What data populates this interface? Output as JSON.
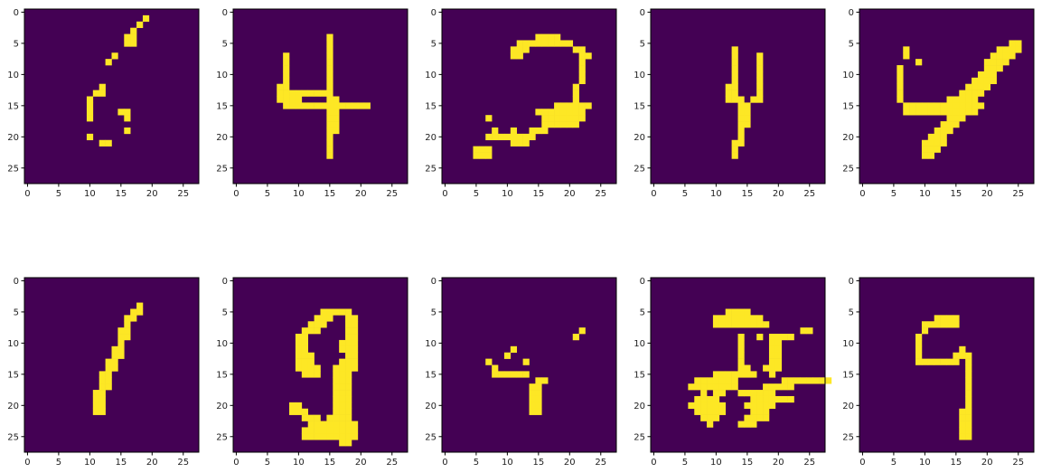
{
  "figure": {
    "rows": 2,
    "cols": 5
  },
  "colors": {
    "background": "#440154",
    "foreground": "#fde725",
    "frame": "#000000",
    "text": "#222222"
  },
  "grid_size": 28,
  "ticks": {
    "x": [
      "0",
      "5",
      "10",
      "15",
      "20",
      "25"
    ],
    "y": [
      "0",
      "5",
      "10",
      "15",
      "20",
      "25"
    ]
  },
  "chart_data": [
    {
      "type": "heatmap",
      "title": "",
      "xlabel": "",
      "ylabel": "",
      "xlim": [
        -0.5,
        27.5
      ],
      "ylim": [
        27.5,
        -0.5
      ],
      "binary_values": [
        0,
        1
      ],
      "rows": [
        "....................",
        "...................#",
        "..................#",
        ".................#",
        "................##",
        "................##",
        "................",
        "..............#",
        ".............#",
        "...........",
        "...........",
        "...........",
        "............#",
        "...........##",
        "..........#",
        "..........#",
        "..........#....##",
        "..........#.....#",
        ".................",
        "................#",
        "..........#",
        "............##"
      ]
    },
    {
      "type": "heatmap",
      "title": "",
      "xlabel": "",
      "ylabel": "",
      "xlim": [
        -0.5,
        27.5
      ],
      "ylim": [
        27.5,
        -0.5
      ],
      "binary_values": [
        0,
        1
      ],
      "rows": [
        "",
        "",
        "",
        "",
        "...............#",
        "...............#",
        "...............#",
        "........#......#",
        "........#......#",
        "........#......#",
        "........#......#",
        "........#......#",
        ".......##......#",
        ".......#########",
        ".......####....##",
        "........##############",
        "...............##",
        "...............##",
        "...............##",
        "...............##",
        "...............#",
        "...............#",
        "...............#",
        "...............#"
      ]
    },
    {
      "type": "heatmap",
      "title": "",
      "xlabel": "",
      "ylabel": "",
      "xlim": [
        -0.5,
        27.5
      ],
      "ylim": [
        27.5,
        -0.5
      ],
      "binary_values": [
        0,
        1
      ],
      "rows": [
        "",
        "",
        "",
        "",
        "...............####",
        "............#########",
        "...........###.......##",
        "...........##.........##",
        "......................#",
        "......................#",
        "......................#",
        "......................#",
        ".....................#",
        ".....................#",
        ".....................#",
        "..................######",
        "...............########",
        ".......#........#######",
        "................######",
        "........#..#..###",
        ".......########",
        "...........###",
        ".....###",
        ".....###"
      ]
    },
    {
      "type": "heatmap",
      "title": "",
      "xlabel": "",
      "ylabel": "",
      "xlim": [
        -0.5,
        27.5
      ],
      "ylim": [
        27.5,
        -0.5
      ],
      "binary_values": [
        0,
        1
      ],
      "rows": [
        "",
        "",
        "",
        "",
        "",
        "",
        ".............#",
        ".............#...#",
        ".............#...#",
        ".............#...#",
        ".............#...#",
        ".............#...#",
        "............##...#",
        "............##...#",
        "............###.##",
        "..............##",
        "..............##",
        "..............##",
        "..............##",
        "..............#",
        "..............#",
        ".............##",
        ".............#",
        ".............#"
      ]
    },
    {
      "type": "heatmap",
      "title": "",
      "xlabel": "",
      "ylabel": "",
      "xlim": [
        -0.5,
        27.5
      ],
      "ylim": [
        27.5,
        -0.5
      ],
      "binary_values": [
        0,
        1
      ],
      "rows": [
        "",
        "",
        "",
        "",
        "",
        "........................##",
        ".......#..............####",
        ".......#.............####",
        ".........#..........####",
        "......#.............###",
        "......#............###",
        "......#...........####",
        "......#..........####",
        "......#.........####",
        "......#.......#####",
        ".......#############",
        ".......############",
        "..............###",
        ".............###",
        "............###",
        "...........###",
        "..........####",
        "..........###",
        "..........##"
      ]
    },
    {
      "type": "heatmap",
      "title": "",
      "xlabel": "",
      "ylabel": "",
      "xlim": [
        -0.5,
        27.5
      ],
      "ylim": [
        27.5,
        -0.5
      ],
      "binary_values": [
        0,
        1
      ],
      "rows": [
        "",
        "",
        "",
        "",
        "..................#",
        ".................##",
        "................##",
        "................#",
        "...............##",
        "...............##",
        "...............#",
        "..............##",
        "..............##",
        ".............##",
        ".............##",
        "............##",
        "............##",
        "............##",
        "...........##",
        "...........##",
        "...........##",
        "...........##"
      ]
    },
    {
      "type": "heatmap",
      "title": "",
      "xlabel": "",
      "ylabel": "",
      "xlim": [
        -0.5,
        27.5
      ],
      "ylim": [
        27.5,
        -0.5
      ],
      "binary_values": [
        0,
        1
      ],
      "rows": [
        "",
        "",
        "",
        "",
        "",
        "..............#####",
        ".............###..##",
        "............###...##",
        "...........###....##",
        "..........##......##",
        "..........##.....###",
        "..........##.....###",
        "..........###.....##",
        "..........###....###",
        "..........####..####",
        "...........###..###",
        "................###",
        "................###",
        "................###",
        "................###",
        ".........##.....###",
        ".........###....###",
        "...........###.####",
        "............########",
        "...........#########",
        "...........#########",
        ".................##"
      ]
    },
    {
      "type": "heatmap",
      "title": "",
      "xlabel": "",
      "ylabel": "",
      "xlim": [
        -0.5,
        27.5
      ],
      "ylim": [
        27.5,
        -0.5
      ],
      "binary_values": [
        0,
        1
      ],
      "rows": [
        "",
        "",
        "",
        "",
        "",
        "",
        "",
        "",
        "......................#",
        ".....................#",
        "",
        "...........#",
        "..........#",
        ".......#.....#",
        "........#",
        "........######",
        "...............##",
        "..............##",
        "..............##",
        "..............##",
        "..............##",
        "..............##"
      ]
    },
    {
      "type": "heatmap",
      "title": "",
      "xlabel": "",
      "ylabel": "",
      "xlim": [
        -0.5,
        27.5
      ],
      "ylim": [
        27.5,
        -0.5
      ],
      "binary_values": [
        0,
        1
      ],
      "rows": [
        "",
        "",
        "",
        "",
        "",
        "............####",
        "..........########",
        "..........#########",
        "........................##",
        "..............#..#.####",
        "..............#....##",
        "..............#....##",
        "..............#....##",
        "..............#....##",
        "..............##..###",
        "..........#######..#",
        ".......#######.......########",
        "......########....#####",
        "........#.##..######",
        ".......####.....#######",
        "......######...#####",
        ".......#####....###",
        "........###....####",
        ".........#....###"
      ]
    },
    {
      "type": "heatmap",
      "title": "",
      "xlabel": "",
      "ylabel": "",
      "xlim": [
        -0.5,
        27.5
      ],
      "ylim": [
        27.5,
        -0.5
      ],
      "binary_values": [
        0,
        1
      ],
      "rows": [
        "",
        "",
        "",
        "",
        "",
        "",
        "............####",
        "..........######",
        "..........#",
        ".........#",
        ".........#",
        ".........#......#",
        ".........#.....###",
        ".........#######.#",
        ".................#",
        ".................#",
        ".................#",
        ".................#",
        ".................#",
        ".................#",
        ".................#",
        "................##",
        "................##",
        "................##",
        "................##",
        "................##"
      ]
    }
  ]
}
